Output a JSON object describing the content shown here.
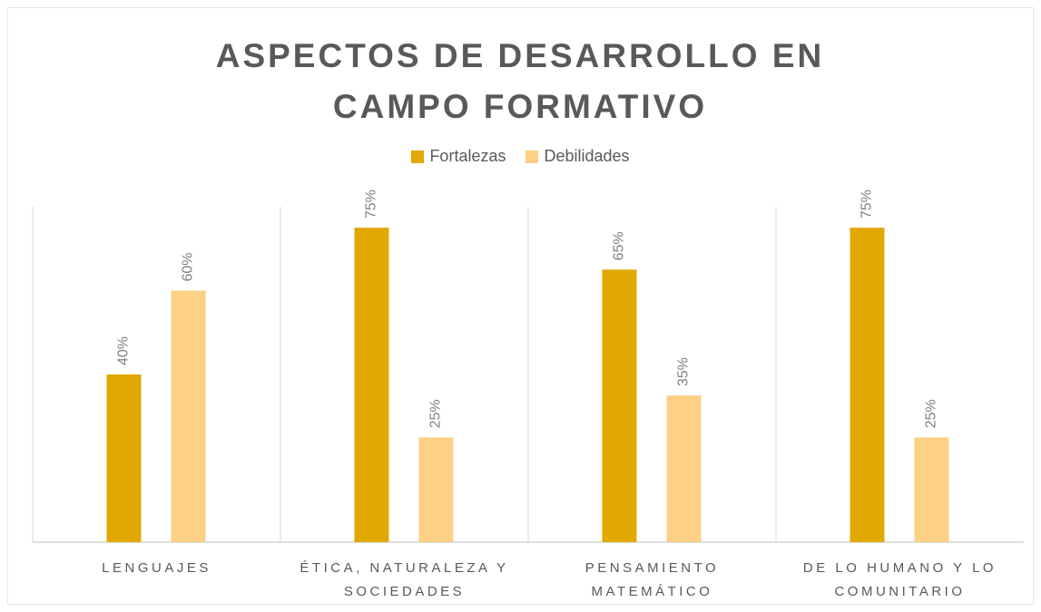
{
  "chart_data": {
    "type": "bar",
    "title": "ASPECTOS DE DESARROLLO EN CAMPO FORMATIVO",
    "categories": [
      "LENGUAJES",
      "ÉTICA, NATURALEZA Y SOCIEDADES",
      "PENSAMIENTO MATEMÁTICO",
      "DE LO HUMANO Y LO COMUNITARIO"
    ],
    "series": [
      {
        "name": "Fortalezas",
        "color": "#e0a800",
        "values": [
          40,
          75,
          65,
          75
        ],
        "value_labels": [
          "40%",
          "75%",
          "65%",
          "75%"
        ]
      },
      {
        "name": "Debilidades",
        "color": "#fdd085",
        "values": [
          60,
          25,
          35,
          25
        ],
        "value_labels": [
          "60%",
          "25%",
          "35%",
          "25%"
        ]
      }
    ],
    "ylim": [
      0,
      80
    ],
    "legend": "top"
  }
}
